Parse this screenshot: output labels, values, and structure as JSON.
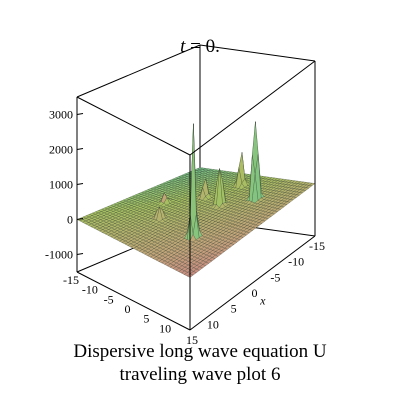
{
  "chart_data": {
    "type": "surface3d",
    "title_var": "t",
    "title_value": "= 0.",
    "caption_line1": "Dispersive long wave equation U",
    "caption_line2": "traveling wave plot 6",
    "xlabel": "x",
    "ylabel": "",
    "zlabel": "",
    "x_ticks": [
      "15",
      "10",
      "5",
      "0",
      "-5",
      "-10",
      "-15"
    ],
    "y_ticks": [
      "-15",
      "-10",
      "-5",
      "0",
      "5",
      "10"
    ],
    "z_ticks": [
      "3000",
      "2000",
      "1000",
      "0",
      "-1000"
    ],
    "xlim": [
      -15,
      15
    ],
    "ylim": [
      -15,
      15
    ],
    "zlim": [
      -1500,
      3500
    ],
    "peaks": [
      {
        "x": 8,
        "y": -7,
        "z": 3100
      },
      {
        "x": -6,
        "y": -6,
        "z": 3200
      },
      {
        "x": 4,
        "y": -2,
        "z": 1500
      },
      {
        "x": 11,
        "y": 0,
        "z": 1100
      },
      {
        "x": 5,
        "y": 3,
        "z": 600
      },
      {
        "x": -5,
        "y": 4,
        "z": 500
      },
      {
        "x": 0,
        "y": 8,
        "z": 300
      }
    ],
    "colormap": [
      "#d06b8a",
      "#c3a27a",
      "#a7c060",
      "#67c79a",
      "#5aa9d0"
    ]
  }
}
